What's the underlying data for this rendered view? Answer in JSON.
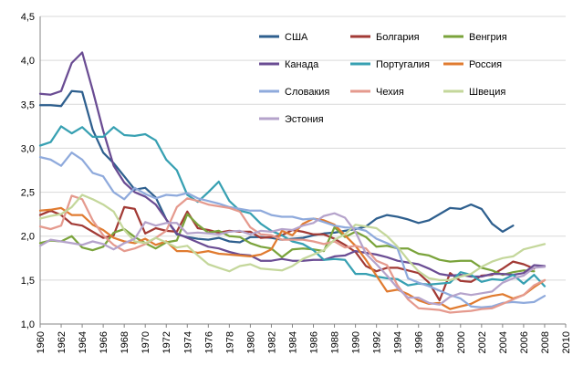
{
  "chart_data": {
    "type": "line",
    "title": "",
    "xlabel": "",
    "ylabel": "",
    "ylim": [
      1.0,
      4.5
    ],
    "xlim": [
      1960,
      2010
    ],
    "y_ticks": [
      "1,0",
      "1,5",
      "2,0",
      "2,5",
      "3,0",
      "3,5",
      "4,0",
      "4,5"
    ],
    "y_tick_values": [
      1.0,
      1.5,
      2.0,
      2.5,
      3.0,
      3.5,
      4.0,
      4.5
    ],
    "x_ticks": [
      "1960",
      "1962",
      "1964",
      "1966",
      "1968",
      "1970",
      "1972",
      "1974",
      "1976",
      "1978",
      "1980",
      "1982",
      "1984",
      "1986",
      "1988",
      "1990",
      "1992",
      "1994",
      "1996",
      "1998",
      "2000",
      "2002",
      "2004",
      "2006",
      "2008",
      "2010"
    ],
    "grid": "horizontal",
    "legend_position": "top-right",
    "series": [
      {
        "name": "США",
        "color": "#2E5F8E",
        "start": 1960,
        "values": [
          3.49,
          3.49,
          3.48,
          3.65,
          3.64,
          3.21,
          2.95,
          2.83,
          2.68,
          2.53,
          2.55,
          2.44,
          2.19,
          2.02,
          1.99,
          1.97,
          1.96,
          1.98,
          1.94,
          1.93,
          1.99,
          1.99,
          1.98,
          1.96,
          1.97,
          1.98,
          2.01,
          2.03,
          2.04,
          2.06,
          2.08,
          2.11,
          2.2,
          2.24,
          2.22,
          2.19,
          2.15,
          2.18,
          2.25,
          2.32,
          2.31,
          2.36,
          2.31,
          2.14,
          2.05,
          2.12
        ]
      },
      {
        "name": "Болгария",
        "color": "#A23A35",
        "start": 1960,
        "values": [
          2.24,
          2.29,
          2.24,
          2.14,
          2.12,
          2.05,
          1.98,
          2.01,
          2.33,
          2.31,
          2.03,
          2.09,
          2.06,
          2.05,
          2.28,
          2.09,
          2.07,
          2.04,
          2.06,
          2.05,
          2.05,
          1.98,
          1.99,
          2.01,
          2.07,
          2.05,
          2.02,
          2.02,
          1.97,
          1.9,
          1.82,
          1.66,
          1.6,
          1.64,
          1.64,
          1.61,
          1.58,
          1.47,
          1.27,
          1.58,
          1.49,
          1.48,
          1.55,
          1.56,
          1.63,
          1.71,
          1.68,
          1.63
        ]
      },
      {
        "name": "Венгрия",
        "color": "#7AA33B",
        "start": 1960,
        "values": [
          1.92,
          1.95,
          1.94,
          2.0,
          1.87,
          1.84,
          1.88,
          2.04,
          2.08,
          1.99,
          1.92,
          1.86,
          1.93,
          1.95,
          2.25,
          2.13,
          2.04,
          2.06,
          2.0,
          1.99,
          1.92,
          1.88,
          1.86,
          1.76,
          1.85,
          1.86,
          1.85,
          1.83,
          2.1,
          1.99,
          2.05,
          1.99,
          1.88,
          1.89,
          1.86,
          1.86,
          1.8,
          1.78,
          1.73,
          1.71,
          1.72,
          1.72,
          1.64,
          1.61,
          1.56,
          1.59,
          1.61,
          1.6
        ]
      },
      {
        "name": "Канада",
        "color": "#6A4C93",
        "start": 1960,
        "values": [
          3.62,
          3.61,
          3.65,
          3.97,
          4.09,
          3.66,
          3.2,
          2.8,
          2.61,
          2.5,
          2.45,
          2.36,
          2.19,
          2.03,
          1.98,
          1.93,
          1.88,
          1.86,
          1.82,
          1.79,
          1.78,
          1.72,
          1.72,
          1.74,
          1.72,
          1.72,
          1.73,
          1.73,
          1.77,
          1.78,
          1.83,
          1.81,
          1.79,
          1.76,
          1.72,
          1.7,
          1.68,
          1.63,
          1.57,
          1.55,
          1.56,
          1.54,
          1.54,
          1.57,
          1.57,
          1.56,
          1.58,
          1.67,
          1.66
        ]
      },
      {
        "name": "Португалия",
        "color": "#37A0B2",
        "start": 1960,
        "values": [
          3.03,
          3.07,
          3.25,
          3.17,
          3.24,
          3.13,
          3.13,
          3.24,
          3.15,
          3.14,
          3.16,
          3.09,
          2.87,
          2.75,
          2.47,
          2.39,
          2.5,
          2.62,
          2.4,
          2.29,
          2.26,
          2.14,
          2.06,
          2.01,
          1.94,
          1.91,
          1.84,
          1.73,
          1.74,
          1.73,
          1.57,
          1.57,
          1.54,
          1.52,
          1.51,
          1.44,
          1.46,
          1.45,
          1.46,
          1.47,
          1.59,
          1.56,
          1.48,
          1.51,
          1.5,
          1.56,
          1.46,
          1.56,
          1.43
        ]
      },
      {
        "name": "Россия",
        "color": "#E07B30",
        "start": 1960,
        "values": [
          2.29,
          2.3,
          2.32,
          2.24,
          2.24,
          2.13,
          2.07,
          1.98,
          1.94,
          1.92,
          1.97,
          1.9,
          1.94,
          1.83,
          1.83,
          1.81,
          1.83,
          1.8,
          1.79,
          1.78,
          1.77,
          1.79,
          1.85,
          2.06,
          2.01,
          2.14,
          2.2,
          2.18,
          2.13,
          2.01,
          1.89,
          1.73,
          1.55,
          1.37,
          1.39,
          1.34,
          1.27,
          1.23,
          1.24,
          1.17,
          1.2,
          1.23,
          1.29,
          1.32,
          1.34,
          1.29,
          1.33,
          1.42,
          1.5
        ]
      },
      {
        "name": "Словакия",
        "color": "#8FAADC",
        "start": 1960,
        "values": [
          2.9,
          2.87,
          2.8,
          2.95,
          2.87,
          2.72,
          2.68,
          2.5,
          2.42,
          2.55,
          2.48,
          2.43,
          2.47,
          2.46,
          2.49,
          2.43,
          2.4,
          2.37,
          2.33,
          2.31,
          2.29,
          2.29,
          2.24,
          2.22,
          2.22,
          2.19,
          2.2,
          2.16,
          2.12,
          2.1,
          2.09,
          2.06,
          1.97,
          1.92,
          1.86,
          1.52,
          1.47,
          1.43,
          1.38,
          1.33,
          1.29,
          1.2,
          1.19,
          1.2,
          1.24,
          1.25,
          1.24,
          1.25,
          1.32
        ]
      },
      {
        "name": "Чехия",
        "color": "#E59A8E",
        "start": 1960,
        "values": [
          2.11,
          2.08,
          2.12,
          2.46,
          2.42,
          2.18,
          2.01,
          1.9,
          1.83,
          1.86,
          1.91,
          1.98,
          2.06,
          2.33,
          2.43,
          2.4,
          2.36,
          2.34,
          2.32,
          2.28,
          2.1,
          2.02,
          2.01,
          1.96,
          1.96,
          1.96,
          1.94,
          1.91,
          1.94,
          1.87,
          1.89,
          1.86,
          1.72,
          1.67,
          1.44,
          1.28,
          1.18,
          1.17,
          1.16,
          1.13,
          1.14,
          1.15,
          1.17,
          1.18,
          1.23,
          1.28,
          1.33,
          1.44,
          1.5
        ]
      },
      {
        "name": "Швеция",
        "color": "#C4D79B",
        "start": 1960,
        "values": [
          2.2,
          2.23,
          2.25,
          2.33,
          2.47,
          2.42,
          2.36,
          2.28,
          2.07,
          1.94,
          1.92,
          1.98,
          1.93,
          1.87,
          1.89,
          1.78,
          1.68,
          1.64,
          1.6,
          1.66,
          1.68,
          1.63,
          1.62,
          1.61,
          1.66,
          1.74,
          1.79,
          1.84,
          1.96,
          2.02,
          2.13,
          2.11,
          2.09,
          2.0,
          1.88,
          1.73,
          1.6,
          1.52,
          1.5,
          1.5,
          1.54,
          1.57,
          1.65,
          1.71,
          1.75,
          1.77,
          1.85,
          1.88,
          1.91
        ]
      },
      {
        "name": "Эстония",
        "color": "#B5A3CB",
        "start": 1960,
        "values": [
          1.89,
          1.96,
          1.94,
          1.92,
          1.9,
          1.94,
          1.91,
          1.85,
          1.92,
          1.97,
          2.16,
          2.12,
          2.15,
          2.15,
          2.03,
          2.04,
          2.03,
          2.02,
          2.05,
          2.06,
          2.02,
          2.06,
          2.05,
          2.08,
          2.07,
          2.12,
          2.15,
          2.23,
          2.26,
          2.21,
          2.05,
          1.8,
          1.68,
          1.55,
          1.41,
          1.3,
          1.3,
          1.24,
          1.22,
          1.31,
          1.35,
          1.33,
          1.35,
          1.37,
          1.47,
          1.52,
          1.55,
          1.64,
          1.65
        ]
      }
    ]
  }
}
